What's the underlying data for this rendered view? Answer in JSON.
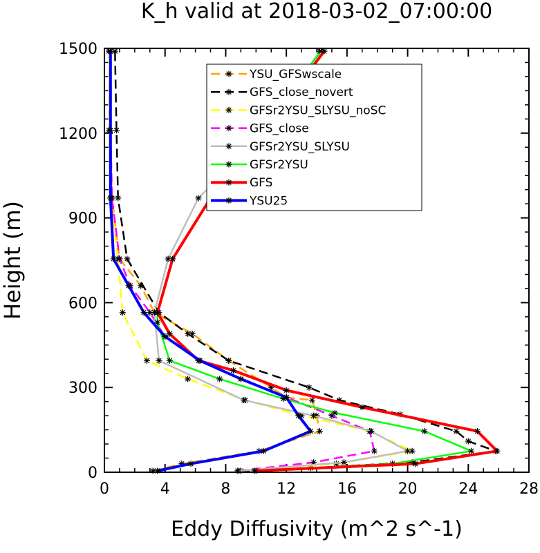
{
  "chart_data": {
    "type": "line",
    "title": "K_h valid at 2018-03-02_07:00:00",
    "xlabel": "Eddy Diffusivity (m^2 s^-1)",
    "ylabel": "Height (m)",
    "xlim": [
      0,
      28
    ],
    "ylim": [
      0,
      1500
    ],
    "xticks": [
      0,
      4,
      8,
      12,
      16,
      20,
      24,
      28
    ],
    "yticks": [
      0,
      300,
      600,
      900,
      1200,
      1500
    ],
    "xtick_labels": [
      "0",
      "4",
      "8",
      "12",
      "16",
      "20",
      "24",
      "28"
    ],
    "ytick_labels": [
      "0",
      "300",
      "600",
      "900",
      "1200",
      "1500"
    ],
    "legend_position": "top-center",
    "grid": false,
    "series": [
      {
        "name": "YSU_GFSwscale",
        "color": "#ffa500",
        "dash": "dashed",
        "width": 2.5,
        "points": [
          [
            3.2,
            5
          ],
          [
            5.1,
            30
          ],
          [
            10.2,
            75
          ],
          [
            14.2,
            145
          ],
          [
            14.0,
            200
          ],
          [
            13.7,
            255
          ],
          [
            12.0,
            265
          ],
          [
            11.0,
            300
          ],
          [
            8.2,
            395
          ],
          [
            5.8,
            490
          ],
          [
            3.3,
            565
          ],
          [
            2.4,
            660
          ],
          [
            1.0,
            755
          ],
          [
            0.5,
            970
          ],
          [
            0.4,
            1210
          ],
          [
            0.4,
            1490
          ]
        ]
      },
      {
        "name": "GFS_close_novert",
        "color": "#000000",
        "dash": "dashed",
        "width": 2.5,
        "points": [
          [
            9.0,
            5
          ],
          [
            13.6,
            15
          ],
          [
            20.3,
            35
          ],
          [
            25.8,
            75
          ],
          [
            24.0,
            110
          ],
          [
            23.2,
            145
          ],
          [
            19.5,
            205
          ],
          [
            15.5,
            255
          ],
          [
            13.5,
            300
          ],
          [
            8.2,
            395
          ],
          [
            5.5,
            490
          ],
          [
            3.6,
            565
          ],
          [
            1.5,
            755
          ],
          [
            0.9,
            970
          ],
          [
            0.8,
            1210
          ],
          [
            0.7,
            1490
          ]
        ]
      },
      {
        "name": "GFSr2YSU_SLYSU_noSC",
        "color": "#ffff00",
        "dash": "dashed",
        "width": 2.5,
        "points": [
          [
            8.8,
            5
          ],
          [
            15.3,
            30
          ],
          [
            20.3,
            75
          ],
          [
            17.5,
            145
          ],
          [
            13.0,
            200
          ],
          [
            9.3,
            255
          ],
          [
            5.5,
            330
          ],
          [
            2.8,
            395
          ],
          [
            1.2,
            565
          ],
          [
            0.9,
            755
          ],
          [
            0.4,
            970
          ],
          [
            0.3,
            1210
          ],
          [
            0.3,
            1490
          ]
        ]
      },
      {
        "name": "GFS_close",
        "color": "#ff00ff",
        "dash": "dashed",
        "width": 2.5,
        "points": [
          [
            8.8,
            5
          ],
          [
            13.8,
            35
          ],
          [
            17.8,
            75
          ],
          [
            17.5,
            145
          ],
          [
            15.0,
            200
          ],
          [
            12.0,
            265
          ],
          [
            9.0,
            330
          ],
          [
            6.3,
            395
          ],
          [
            4.0,
            480
          ],
          [
            3.0,
            565
          ],
          [
            1.7,
            660
          ],
          [
            1.0,
            755
          ],
          [
            0.5,
            970
          ],
          [
            0.4,
            1210
          ],
          [
            0.4,
            1490
          ]
        ]
      },
      {
        "name": "GFSr2YSU_SLYSU",
        "color": "#bebebe",
        "dash": "solid",
        "width": 2.5,
        "points": [
          [
            8.8,
            5
          ],
          [
            15.8,
            35
          ],
          [
            20.0,
            75
          ],
          [
            17.6,
            145
          ],
          [
            13.8,
            200
          ],
          [
            9.2,
            255
          ],
          [
            3.6,
            395
          ],
          [
            3.3,
            565
          ],
          [
            4.2,
            755
          ],
          [
            6.2,
            970
          ],
          [
            10.7,
            1210
          ],
          [
            14.2,
            1490
          ]
        ]
      },
      {
        "name": "GFSr2YSU",
        "color": "#00ff00",
        "dash": "solid",
        "width": 2.5,
        "points": [
          [
            10.0,
            5
          ],
          [
            19.0,
            30
          ],
          [
            24.2,
            75
          ],
          [
            21.1,
            145
          ],
          [
            15.2,
            210
          ],
          [
            11.8,
            260
          ],
          [
            7.6,
            330
          ],
          [
            4.3,
            395
          ],
          [
            3.5,
            530
          ],
          [
            3.5,
            565
          ],
          [
            4.5,
            755
          ],
          [
            7.0,
            970
          ],
          [
            10.3,
            1210
          ],
          [
            14.3,
            1490
          ]
        ]
      },
      {
        "name": "GFS",
        "color": "#ff0000",
        "dash": "solid",
        "width": 4,
        "points": [
          [
            9.9,
            5
          ],
          [
            20.5,
            30
          ],
          [
            25.9,
            75
          ],
          [
            24.6,
            145
          ],
          [
            17.0,
            230
          ],
          [
            12.0,
            290
          ],
          [
            8.5,
            360
          ],
          [
            6.2,
            395
          ],
          [
            4.3,
            490
          ],
          [
            3.5,
            565
          ],
          [
            4.5,
            755
          ],
          [
            7.0,
            970
          ],
          [
            10.6,
            1210
          ],
          [
            14.5,
            1490
          ]
        ]
      },
      {
        "name": "YSU25",
        "color": "#0000ff",
        "dash": "solid",
        "width": 4,
        "points": [
          [
            3.5,
            5
          ],
          [
            5.7,
            30
          ],
          [
            10.5,
            75
          ],
          [
            13.6,
            145
          ],
          [
            12.8,
            200
          ],
          [
            12.0,
            265
          ],
          [
            9.0,
            330
          ],
          [
            6.3,
            395
          ],
          [
            4.0,
            480
          ],
          [
            2.6,
            565
          ],
          [
            1.6,
            660
          ],
          [
            0.6,
            755
          ],
          [
            0.4,
            970
          ],
          [
            0.4,
            1210
          ],
          [
            0.4,
            1490
          ]
        ]
      }
    ]
  }
}
